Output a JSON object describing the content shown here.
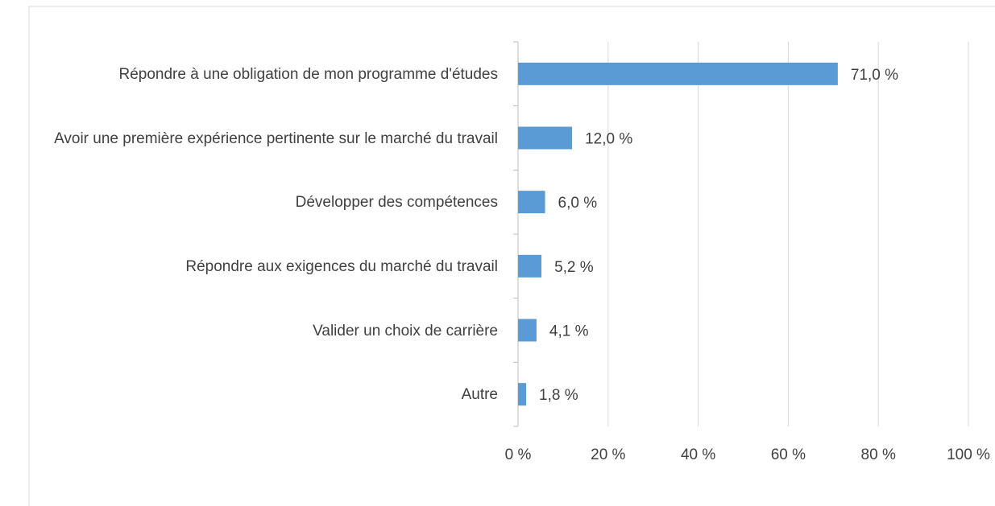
{
  "chart_data": {
    "type": "barh",
    "categories": [
      "Répondre à une obligation de mon programme d'études",
      "Avoir une première expérience pertinente sur le marché du travail",
      "Développer des compétences",
      "Répondre aux exigences du marché du travail",
      "Valider un choix de carrière",
      "Autre"
    ],
    "values": [
      71.0,
      12.0,
      6.0,
      5.2,
      4.1,
      1.8
    ],
    "value_labels": [
      "71,0 %",
      "12,0 %",
      "6,0 %",
      "5,2 %",
      "4,1 %",
      "1,8 %"
    ],
    "color": "#5b9bd5",
    "xlim": [
      0,
      100
    ],
    "xticks": [
      {
        "value": 0,
        "label": "0 %"
      },
      {
        "value": 20,
        "label": "20 %"
      },
      {
        "value": 40,
        "label": "40 %"
      },
      {
        "value": 60,
        "label": "60 %"
      },
      {
        "value": 80,
        "label": "80 %"
      },
      {
        "value": 100,
        "label": "100 %"
      }
    ],
    "grid": true
  }
}
